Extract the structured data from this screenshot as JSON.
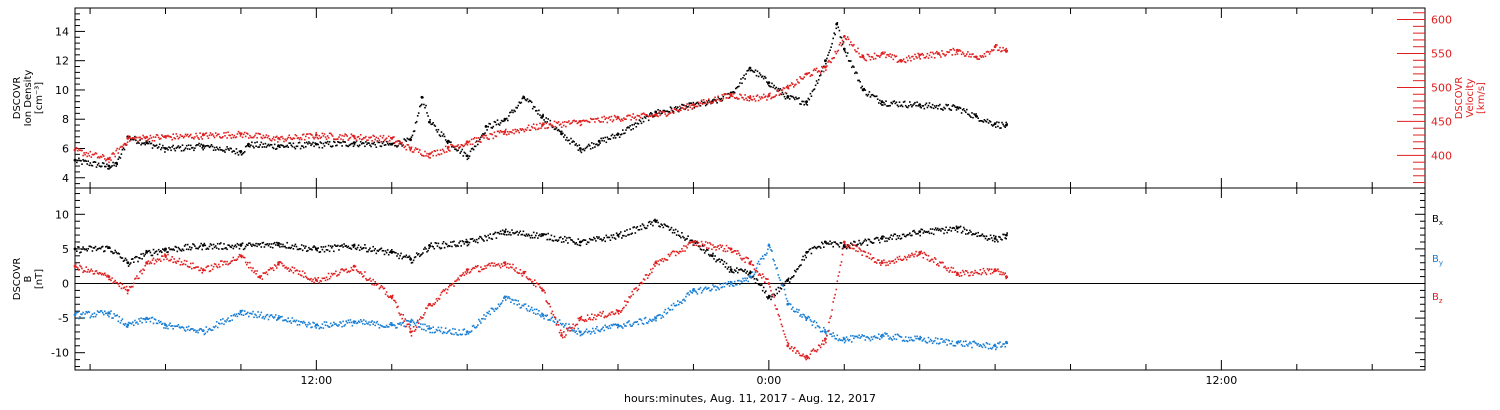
{
  "chart_data": [
    {
      "type": "scatter",
      "panel": "top",
      "title": "",
      "xlabel": "hours:minutes, Aug. 11, 2017 - Aug. 12, 2017",
      "xlim": [
        -6.4,
        29.4
      ],
      "x_tick_labels": [
        {
          "x": 0,
          "label": "12:00"
        },
        {
          "x": 12,
          "label": "0:00"
        },
        {
          "x": 24,
          "label": "12:00"
        }
      ],
      "y_left": {
        "label_lines": [
          "DSCOVR",
          "Ion Density",
          "[cm⁻³]"
        ],
        "ylim": [
          3.3,
          15.6
        ],
        "ticks": [
          4,
          6,
          8,
          10,
          12,
          14
        ],
        "color": "#000000"
      },
      "y_right": {
        "label_lines": [
          "DSCOVR",
          "Velocity",
          "[km/s]"
        ],
        "ylim": [
          352,
          617
        ],
        "ticks": [
          400,
          450,
          500,
          550,
          600
        ],
        "color": "#e02020"
      },
      "series": [
        {
          "axis": "left",
          "color": "#000000",
          "x": [
            -6.4,
            -5.5,
            -5.3,
            -5.0,
            -4.5,
            -4.0,
            -3.0,
            -2.0,
            -1.8,
            -1.0,
            0.0,
            1.0,
            2.0,
            2.5,
            2.8,
            3.0,
            3.5,
            4.0,
            4.5,
            5.0,
            5.5,
            6.0,
            6.5,
            7.0,
            7.5,
            8.0,
            9.0,
            10.0,
            10.5,
            11.0,
            11.5,
            12.0,
            12.5,
            13.0,
            13.5,
            13.8,
            14.0,
            14.5,
            15.0,
            16.0,
            17.0,
            17.5,
            18.0,
            18.3
          ],
          "y": [
            5.2,
            4.8,
            5.0,
            6.8,
            6.4,
            6.0,
            6.2,
            5.8,
            6.3,
            6.2,
            6.3,
            6.4,
            6.3,
            6.6,
            9.5,
            7.8,
            6.5,
            5.5,
            7.5,
            8.0,
            9.5,
            8.2,
            7.0,
            6.0,
            6.5,
            7.0,
            8.5,
            9.0,
            9.2,
            9.8,
            11.5,
            10.5,
            9.5,
            9.2,
            12.0,
            14.5,
            12.8,
            10.0,
            9.2,
            9.0,
            8.8,
            8.2,
            7.7,
            7.6
          ]
        },
        {
          "axis": "right",
          "color": "#e02020",
          "x": [
            -6.4,
            -5.5,
            -5.0,
            -4.5,
            -4.0,
            -3.0,
            -2.0,
            -1.0,
            0.0,
            1.0,
            2.0,
            2.5,
            3.0,
            3.5,
            4.0,
            5.0,
            6.0,
            7.0,
            8.0,
            9.0,
            10.0,
            11.0,
            11.5,
            12.0,
            12.5,
            13.0,
            13.5,
            14.0,
            14.5,
            15.0,
            15.5,
            16.0,
            16.5,
            17.0,
            17.5,
            18.0,
            18.3
          ],
          "y": [
            408,
            395,
            425,
            427,
            428,
            430,
            432,
            425,
            430,
            428,
            425,
            410,
            402,
            412,
            420,
            435,
            445,
            450,
            456,
            460,
            475,
            490,
            485,
            488,
            500,
            520,
            530,
            575,
            545,
            550,
            540,
            548,
            550,
            555,
            545,
            560,
            553
          ]
        }
      ]
    },
    {
      "type": "scatter",
      "panel": "bottom",
      "title": "",
      "xlim": [
        -6.4,
        29.4
      ],
      "x_tick_labels": [
        {
          "x": 0,
          "label": "12:00"
        },
        {
          "x": 12,
          "label": "0:00"
        },
        {
          "x": 24,
          "label": "12:00"
        }
      ],
      "y_left": {
        "label_lines": [
          "DSCOVR",
          "B",
          "[nT]"
        ],
        "ylim": [
          -12.5,
          13.8
        ],
        "ticks": [
          -10,
          -5,
          0,
          5,
          10
        ],
        "color": "#000000"
      },
      "zero_line": true,
      "series": [
        {
          "name": "B",
          "name_sub": "x",
          "color": "#000000",
          "x": [
            -6.4,
            -5.5,
            -5.0,
            -4.5,
            -4.0,
            -3.0,
            -2.0,
            -1.0,
            0.0,
            1.0,
            2.0,
            2.5,
            3.0,
            4.0,
            5.0,
            6.0,
            7.0,
            8.0,
            9.0,
            10.0,
            10.5,
            11.0,
            11.5,
            12.0,
            12.5,
            13.0,
            13.5,
            14.0,
            15.0,
            16.0,
            17.0,
            18.0,
            18.3
          ],
          "y": [
            5.0,
            5.2,
            3.0,
            4.5,
            5.0,
            5.5,
            5.5,
            5.8,
            5.0,
            5.5,
            4.5,
            3.5,
            5.5,
            6.0,
            7.5,
            7.0,
            6.0,
            7.0,
            9.0,
            6.0,
            4.0,
            2.0,
            1.5,
            -2.0,
            0.5,
            4.5,
            6.0,
            5.5,
            6.5,
            7.5,
            8.0,
            6.5,
            7.0
          ]
        },
        {
          "name": "B",
          "name_sub": "y",
          "color": "#1a7fd4",
          "x": [
            -6.4,
            -5.5,
            -5.0,
            -4.5,
            -4.0,
            -3.0,
            -2.0,
            -1.0,
            0.0,
            1.0,
            2.0,
            2.5,
            3.0,
            4.0,
            5.0,
            6.0,
            7.0,
            8.0,
            9.0,
            10.0,
            11.0,
            11.5,
            12.0,
            12.5,
            13.0,
            13.5,
            14.0,
            15.0,
            16.0,
            17.0,
            18.0,
            18.3
          ],
          "y": [
            -4.5,
            -4.2,
            -6.0,
            -5.0,
            -6.0,
            -6.8,
            -4.0,
            -5.0,
            -6.0,
            -5.5,
            -6.0,
            -5.5,
            -6.5,
            -7.0,
            -2.0,
            -4.5,
            -7.0,
            -6.0,
            -5.0,
            -1.0,
            0.0,
            1.0,
            5.5,
            -3.0,
            -5.0,
            -7.0,
            -8.0,
            -7.5,
            -8.0,
            -8.5,
            -9.0,
            -8.5
          ]
        },
        {
          "name": "B",
          "name_sub": "z",
          "color": "#e02020",
          "x": [
            -6.4,
            -5.5,
            -5.0,
            -4.5,
            -4.0,
            -3.0,
            -2.0,
            -1.5,
            -1.0,
            0.0,
            1.0,
            2.0,
            2.5,
            3.0,
            4.0,
            5.0,
            5.5,
            6.0,
            6.5,
            7.0,
            8.0,
            9.0,
            10.0,
            11.0,
            11.5,
            12.0,
            12.5,
            13.0,
            13.5,
            14.0,
            15.0,
            16.0,
            17.0,
            18.0,
            18.3
          ],
          "y": [
            2.5,
            1.0,
            -1.0,
            3.0,
            4.0,
            2.0,
            4.0,
            1.0,
            3.0,
            0.5,
            2.5,
            -2.0,
            -7.0,
            -3.0,
            2.0,
            3.0,
            1.5,
            -1.0,
            -7.5,
            -5.0,
            -4.0,
            3.0,
            6.0,
            5.0,
            3.0,
            0.0,
            -9.0,
            -10.5,
            -8.0,
            6.0,
            3.0,
            4.5,
            1.5,
            2.0,
            1.0
          ]
        }
      ]
    }
  ]
}
